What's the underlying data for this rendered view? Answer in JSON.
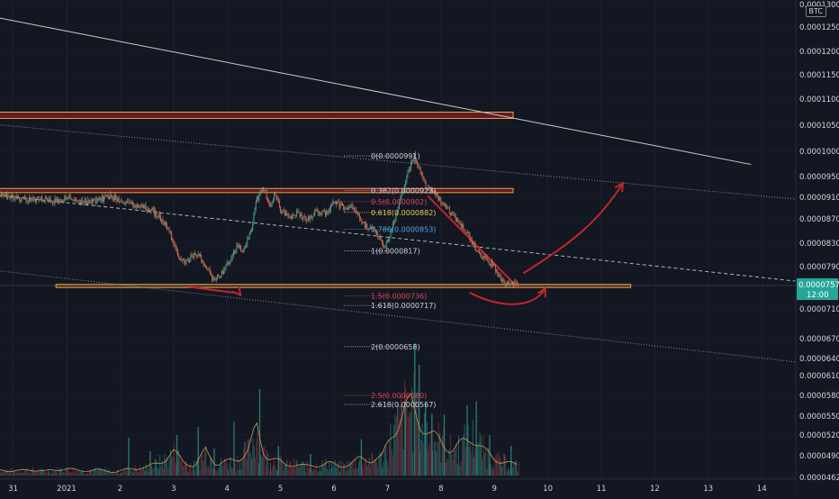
{
  "chart_data": {
    "type": "candlestick",
    "currency_badge": "BTC",
    "y_axis": {
      "range": [
        4.62e-05,
        0.0001307
      ],
      "tick_labels": [
        "0.0001300",
        "0.0001250",
        "0.0001200",
        "0.0001150",
        "0.0001100",
        "0.0001050",
        "0.0001000",
        "0.0000950",
        "0.0000910",
        "0.0000870",
        "0.0000830",
        "0.0000790",
        "0.0000757",
        "0.0000710",
        "0.0000670",
        "0.0000640",
        "0.0000610",
        "0.0000580",
        "0.0000550",
        "0.0000520",
        "0.0000490",
        "0.0000462"
      ],
      "tick_values": [
        0.00013,
        0.000125,
        0.00012,
        0.000115,
        0.00011,
        0.000105,
        0.0001,
        9.5e-05,
        9.1e-05,
        8.7e-05,
        8.3e-05,
        7.9e-05,
        7.57e-05,
        7.1e-05,
        6.7e-05,
        6.4e-05,
        6.1e-05,
        5.8e-05,
        5.5e-05,
        5.2e-05,
        4.9e-05,
        4.62e-05
      ]
    },
    "x_axis": {
      "tick_labels": [
        "31",
        "2021",
        "2",
        "3",
        "4",
        "5",
        "6",
        "7",
        "8",
        "9",
        "10",
        "11",
        "12",
        "13",
        "14"
      ],
      "tick_day_offsets": [
        -1,
        0,
        1,
        2,
        3,
        4,
        5,
        6,
        7,
        8,
        9,
        10,
        11,
        12,
        13
      ]
    },
    "last_price": {
      "label": "0.0000757",
      "value": 7.57e-05,
      "countdown": "12:00",
      "color": "#26a69a"
    },
    "fibonacci": {
      "levels": [
        {
          "label": "0(0.0000991)",
          "value": 9.91e-05,
          "color": "#d1d4dc"
        },
        {
          "label": "0.382(0.0000923)",
          "value": 9.23e-05,
          "color": "#d1d4dc"
        },
        {
          "label": "0.5(0.0000902)",
          "value": 9.02e-05,
          "color": "#e0475a"
        },
        {
          "label": "0.618(0.0000882)",
          "value": 8.82e-05,
          "color": "#f2c94c"
        },
        {
          "label": "0.786(0.0000853)",
          "value": 8.53e-05,
          "color": "#4ea7e6"
        },
        {
          "label": "1(0.0000817)",
          "value": 8.17e-05,
          "color": "#d1d4dc"
        },
        {
          "label": "1.5(0.0000736)",
          "value": 7.36e-05,
          "color": "#e0475a"
        },
        {
          "label": "1.618(0.0000717)",
          "value": 7.17e-05,
          "color": "#d1d4dc"
        },
        {
          "label": "2(0.0000658)",
          "value": 6.58e-05,
          "color": "#d1d4dc"
        },
        {
          "label": "2.5(0.0000580)",
          "value": 5.8e-05,
          "color": "#e0475a"
        },
        {
          "label": "2.618(0.0000567)",
          "value": 5.67e-05,
          "color": "#d1d4dc"
        }
      ]
    },
    "price_path": [
      [
        -1.3,
        9.18e-05
      ],
      [
        -1.0,
        9.11e-05
      ],
      [
        -0.8,
        9.05e-05
      ],
      [
        -0.5,
        9.08e-05
      ],
      [
        -0.2,
        9.03e-05
      ],
      [
        0.0,
        9.07e-05
      ],
      [
        0.3,
        9.02e-05
      ],
      [
        0.6,
        9.04e-05
      ],
      [
        0.8,
        9.13e-05
      ],
      [
        1.0,
        9.04e-05
      ],
      [
        1.2,
        8.97e-05
      ],
      [
        1.4,
        8.94e-05
      ],
      [
        1.6,
        8.86e-05
      ],
      [
        1.75,
        8.72e-05
      ],
      [
        1.9,
        8.55e-05
      ],
      [
        2.0,
        8.3e-05
      ],
      [
        2.1,
        8.05e-05
      ],
      [
        2.2,
        7.96e-05
      ],
      [
        2.4,
        8.12e-05
      ],
      [
        2.5,
        8.06e-05
      ],
      [
        2.65,
        7.83e-05
      ],
      [
        2.75,
        7.68e-05
      ],
      [
        2.85,
        7.72e-05
      ],
      [
        3.0,
        7.92e-05
      ],
      [
        3.2,
        8.26e-05
      ],
      [
        3.3,
        8.17e-05
      ],
      [
        3.45,
        8.5e-05
      ],
      [
        3.55,
        9.05e-05
      ],
      [
        3.7,
        9.27e-05
      ],
      [
        3.8,
        8.9e-05
      ],
      [
        3.9,
        9.2e-05
      ],
      [
        4.0,
        8.85e-05
      ],
      [
        4.15,
        8.72e-05
      ],
      [
        4.3,
        8.8e-05
      ],
      [
        4.5,
        8.68e-05
      ],
      [
        4.7,
        8.86e-05
      ],
      [
        4.85,
        8.78e-05
      ],
      [
        5.0,
        9.01e-05
      ],
      [
        5.2,
        8.91e-05
      ],
      [
        5.3,
        8.95e-05
      ],
      [
        5.45,
        8.78e-05
      ],
      [
        5.55,
        8.6e-05
      ],
      [
        5.7,
        8.55e-05
      ],
      [
        5.85,
        8.4e-05
      ],
      [
        5.95,
        8.2e-05
      ],
      [
        6.05,
        8.45e-05
      ],
      [
        6.15,
        8.75e-05
      ],
      [
        6.3,
        9.25e-05
      ],
      [
        6.4,
        9.62e-05
      ],
      [
        6.5,
        9.91e-05
      ],
      [
        6.6,
        9.65e-05
      ],
      [
        6.75,
        9.25e-05
      ],
      [
        6.9,
        9.18e-05
      ],
      [
        7.05,
        8.95e-05
      ],
      [
        7.2,
        8.8e-05
      ],
      [
        7.35,
        8.62e-05
      ],
      [
        7.5,
        8.45e-05
      ],
      [
        7.6,
        8.3e-05
      ],
      [
        7.7,
        8.12e-05
      ],
      [
        7.85,
        8.02e-05
      ],
      [
        8.0,
        7.9e-05
      ],
      [
        8.1,
        7.7e-05
      ],
      [
        8.2,
        7.62e-05
      ],
      [
        8.35,
        7.59e-05
      ],
      [
        8.45,
        7.57e-05
      ]
    ],
    "volume_profile": [
      [
        -1.3,
        0.05
      ],
      [
        -1.0,
        0.04
      ],
      [
        -0.7,
        0.05
      ],
      [
        -0.4,
        0.04
      ],
      [
        0.0,
        0.06
      ],
      [
        0.3,
        0.04
      ],
      [
        0.6,
        0.05
      ],
      [
        0.9,
        0.03
      ],
      [
        1.2,
        0.06
      ],
      [
        1.5,
        0.07
      ],
      [
        1.8,
        0.13
      ],
      [
        2.0,
        0.2
      ],
      [
        2.2,
        0.12
      ],
      [
        2.4,
        0.08
      ],
      [
        2.6,
        0.22
      ],
      [
        2.8,
        0.1
      ],
      [
        3.0,
        0.12
      ],
      [
        3.2,
        0.14
      ],
      [
        3.4,
        0.22
      ],
      [
        3.55,
        0.42
      ],
      [
        3.7,
        0.18
      ],
      [
        3.9,
        0.14
      ],
      [
        4.1,
        0.09
      ],
      [
        4.3,
        0.1
      ],
      [
        4.5,
        0.08
      ],
      [
        4.7,
        0.09
      ],
      [
        4.9,
        0.11
      ],
      [
        5.1,
        0.08
      ],
      [
        5.3,
        0.1
      ],
      [
        5.5,
        0.15
      ],
      [
        5.7,
        0.13
      ],
      [
        5.9,
        0.16
      ],
      [
        6.1,
        0.38
      ],
      [
        6.3,
        0.55
      ],
      [
        6.45,
        0.62
      ],
      [
        6.6,
        0.48
      ],
      [
        6.8,
        0.35
      ],
      [
        7.0,
        0.3
      ],
      [
        7.2,
        0.22
      ],
      [
        7.4,
        0.28
      ],
      [
        7.6,
        0.34
      ],
      [
        7.8,
        0.22
      ],
      [
        8.0,
        0.14
      ],
      [
        8.2,
        0.12
      ],
      [
        8.4,
        0.09
      ]
    ],
    "volume_spikes": [
      [
        1.15,
        0.28
      ],
      [
        1.55,
        0.18
      ],
      [
        2.05,
        0.3
      ],
      [
        2.45,
        0.36
      ],
      [
        2.75,
        0.2
      ],
      [
        3.12,
        0.4
      ],
      [
        3.6,
        0.64
      ],
      [
        3.95,
        0.22
      ],
      [
        4.55,
        0.16
      ],
      [
        5.5,
        0.27
      ],
      [
        6.32,
        0.55
      ],
      [
        6.5,
        0.98
      ],
      [
        6.58,
        0.82
      ],
      [
        6.7,
        0.55
      ],
      [
        6.82,
        0.46
      ],
      [
        7.05,
        0.45
      ],
      [
        7.48,
        0.52
      ],
      [
        7.65,
        0.55
      ],
      [
        7.9,
        0.3
      ],
      [
        8.3,
        0.22
      ]
    ],
    "zones": [
      {
        "name": "resistance-zone-top",
        "from_day": -1.3,
        "to_day": 8.35,
        "y_top": 0.0001075,
        "y_bottom": 0.0001063,
        "stroke": "#e8a33c",
        "fill": "#7a1e2a"
      },
      {
        "name": "resistance-zone-mid",
        "from_day": -1.3,
        "to_day": 8.35,
        "y_top": 9.27e-05,
        "y_bottom": 9.19e-05,
        "stroke": "#e8a33c",
        "fill": "#7a1e2a"
      },
      {
        "name": "support-zone",
        "from_day": -0.2,
        "to_day": 10.55,
        "y_top": 7.59e-05,
        "y_bottom": 7.53e-05,
        "stroke": "#e8a33c",
        "fill": "#5a3a2a"
      }
    ],
    "trendlines": [
      {
        "name": "long-term-trendline",
        "style": "solid",
        "color": "#c9cbd0",
        "points": [
          [
            -1.3,
            0.0001271
          ],
          [
            12.8,
            9.74e-05
          ]
        ]
      },
      {
        "name": "upper-channel-line",
        "style": "dotted",
        "color": "#8a8e99",
        "points": [
          [
            -1.3,
            0.0001051
          ],
          [
            13.9,
            9.04e-05
          ]
        ]
      },
      {
        "name": "mid-channel-line",
        "style": "dashed",
        "color": "#b0b3ba",
        "points": [
          [
            -1.3,
            9.14e-05
          ],
          [
            13.9,
            7.62e-05
          ]
        ]
      },
      {
        "name": "lower-channel-line",
        "style": "dotted",
        "color": "#8a8e99",
        "points": [
          [
            -1.3,
            7.83e-05
          ],
          [
            13.9,
            6.31e-05
          ]
        ]
      },
      {
        "name": "price-line",
        "style": "dotted",
        "color": "#5b6270",
        "points": [
          [
            -1.3,
            7.57e-05
          ],
          [
            13.9,
            7.57e-05
          ]
        ]
      },
      {
        "name": "red-downtrend-line",
        "style": "solid",
        "color": "#c0262d",
        "points": [
          [
            6.75,
            9.13e-05
          ],
          [
            8.45,
            7.52e-05
          ]
        ]
      }
    ],
    "annotations": [
      {
        "name": "curve-arrow-left",
        "color": "#c0262d",
        "points": [
          [
            2.3,
            7.55e-05
          ],
          [
            2.8,
            7.45e-05
          ],
          [
            3.2,
            7.45e-05
          ],
          [
            3.25,
            7.38e-05
          ]
        ]
      },
      {
        "name": "curve-arrow-bottom",
        "color": "#c0262d",
        "points": [
          [
            7.55,
            7.42e-05
          ],
          [
            8.3,
            7.05e-05
          ],
          [
            8.8,
            7.21e-05
          ],
          [
            8.95,
            7.51e-05
          ]
        ]
      },
      {
        "name": "curve-arrow-up",
        "color": "#c0262d",
        "points": [
          [
            8.55,
            7.79e-05
          ],
          [
            9.3,
            8.23e-05
          ],
          [
            9.9,
            8.58e-05
          ],
          [
            10.4,
            9.37e-05
          ]
        ]
      }
    ]
  }
}
